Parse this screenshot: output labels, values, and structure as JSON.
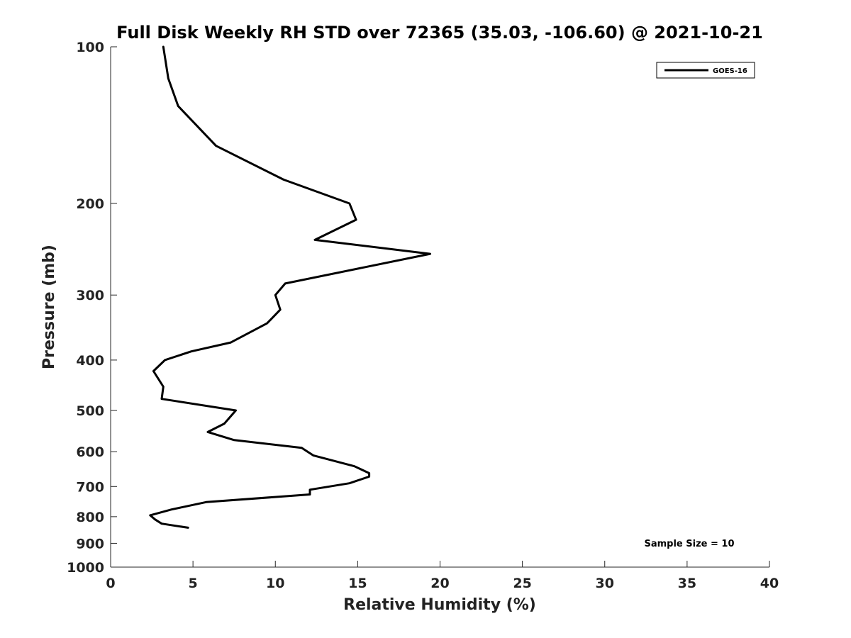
{
  "chart_data": {
    "type": "line",
    "title": "Full Disk Weekly RH STD over 72365 (35.03, -106.60) @ 2021-10-21",
    "xlabel": "Relative Humidity (%)",
    "ylabel": "Pressure (mb)",
    "xlim": [
      0,
      40
    ],
    "ylim": [
      100,
      1000
    ],
    "yscale": "log",
    "y_reversed": true,
    "xticks": [
      0,
      5,
      10,
      15,
      20,
      25,
      30,
      35,
      40
    ],
    "yticks": [
      100,
      200,
      300,
      400,
      500,
      600,
      700,
      800,
      900,
      1000
    ],
    "grid": false,
    "legend_position": "top-right",
    "annotation": "Sample Size = 10",
    "series": [
      {
        "name": "GOES-16",
        "color": "#000000",
        "x": [
          3.2,
          3.5,
          4.1,
          6.4,
          10.5,
          14.5,
          14.9,
          12.4,
          19.4,
          10.6,
          10.0,
          10.3,
          9.5,
          7.3,
          4.9,
          3.3,
          2.6,
          3.2,
          3.1,
          7.6,
          6.9,
          5.9,
          7.5,
          11.6,
          12.3,
          14.8,
          15.7,
          15.7,
          14.5,
          12.1,
          12.1,
          5.8,
          3.7,
          2.4,
          2.7,
          3.1,
          4.7
        ],
        "y": [
          100,
          115,
          130,
          155,
          180,
          200,
          215,
          235,
          250,
          285,
          300,
          320,
          340,
          370,
          385,
          400,
          420,
          450,
          475,
          500,
          530,
          550,
          570,
          590,
          610,
          640,
          660,
          670,
          690,
          710,
          725,
          750,
          775,
          795,
          810,
          825,
          840
        ]
      }
    ]
  }
}
